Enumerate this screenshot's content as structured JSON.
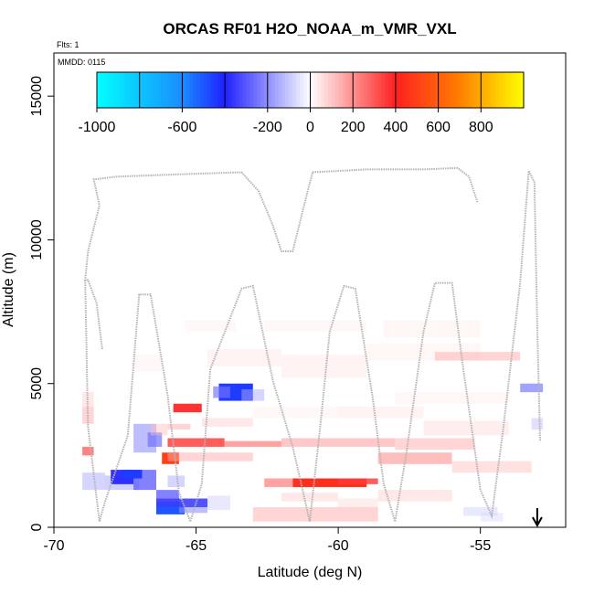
{
  "chart_data": {
    "type": "heatmap",
    "title": "ORCAS RF01 H2O_NOAA_m_VMR_VXL",
    "flights_note": "Flts: 1",
    "date_note": "MMDD: 0115",
    "xlabel": "Latitude (deg N)",
    "ylabel": "Altitude (m)",
    "xlim": [
      -70,
      -52
    ],
    "ylim": [
      0,
      16500
    ],
    "x_ticks": [
      -70,
      -65,
      -60,
      -55
    ],
    "x_tick_labels": [
      "-70",
      "-65",
      "-60",
      "-55"
    ],
    "y_ticks": [
      0,
      5000,
      10000,
      15000
    ],
    "y_tick_labels": [
      "0",
      "5000",
      "10000",
      "15000"
    ],
    "colorbar": {
      "range": [
        -1000,
        1000
      ],
      "ticks": [
        -1000,
        -600,
        -200,
        0,
        200,
        400,
        600,
        800
      ],
      "tick_labels": [
        "-1000",
        "-600",
        "-200",
        "0",
        "200",
        "400",
        "600",
        "800"
      ],
      "divisions": [
        -1000,
        -800,
        -600,
        -400,
        -200,
        0,
        200,
        400,
        600,
        800,
        1000
      ],
      "colors": [
        "#00ffff",
        "#1a8cff",
        "#2020ff",
        "#ffffff",
        "#ff2020",
        "#ff7f00",
        "#ffff00"
      ],
      "color_stops": [
        -1000,
        -600,
        -400,
        0,
        400,
        700,
        1000
      ]
    },
    "cells": [
      [
        -69.0,
        -68.6,
        4200,
        4700,
        100
      ],
      [
        -69.0,
        -68.6,
        3600,
        4200,
        150
      ],
      [
        -69.0,
        -68.6,
        2500,
        2800,
        300
      ],
      [
        -69.0,
        -68.2,
        1300,
        1900,
        -150
      ],
      [
        -68.2,
        -67.0,
        1300,
        1800,
        -160
      ],
      [
        -67.2,
        -66.4,
        1300,
        2000,
        -300
      ],
      [
        -68.0,
        -67.2,
        1500,
        2000,
        -400
      ],
      [
        -67.6,
        -66.9,
        1700,
        2000,
        -450
      ],
      [
        -67.2,
        -66.4,
        2600,
        3600,
        -200
      ],
      [
        -66.7,
        -66.2,
        2800,
        3300,
        -260
      ],
      [
        -66.4,
        -65.4,
        450,
        900,
        -500
      ],
      [
        -66.4,
        -65.6,
        900,
        1300,
        -300
      ],
      [
        -65.6,
        -64.6,
        500,
        1000,
        -200
      ],
      [
        -66.0,
        -65.4,
        1400,
        1800,
        -150
      ],
      [
        -64.6,
        -63.8,
        600,
        1100,
        -100
      ],
      [
        -66.6,
        -66.0,
        3200,
        3600,
        120
      ],
      [
        -66.0,
        -65.2,
        3400,
        3600,
        150
      ],
      [
        -65.8,
        -64.8,
        4000,
        4300,
        400
      ],
      [
        -66.2,
        -65.6,
        2200,
        2600,
        500
      ],
      [
        -66.0,
        -64.0,
        2800,
        3100,
        350
      ],
      [
        -64.0,
        -62.0,
        2800,
        3000,
        250
      ],
      [
        -66.0,
        -63.0,
        2300,
        2600,
        150
      ],
      [
        -64.8,
        -63.0,
        3500,
        3800,
        100
      ],
      [
        -64.2,
        -63.0,
        4400,
        5000,
        -450
      ],
      [
        -64.4,
        -63.8,
        4500,
        4900,
        -250
      ],
      [
        -63.4,
        -62.6,
        4400,
        4800,
        -150
      ],
      [
        -61.6,
        -59.0,
        1400,
        1700,
        450
      ],
      [
        -62.6,
        -61.6,
        1400,
        1700,
        250
      ],
      [
        -60.0,
        -58.6,
        1500,
        1700,
        350
      ],
      [
        -63.0,
        -58.6,
        200,
        700,
        150
      ],
      [
        -62.0,
        -60.0,
        900,
        1200,
        100
      ],
      [
        -60.0,
        -58.6,
        600,
        1000,
        80
      ],
      [
        -58.6,
        -56.0,
        900,
        1300,
        100
      ],
      [
        -62.0,
        -58.0,
        2800,
        3100,
        180
      ],
      [
        -58.6,
        -56.0,
        2200,
        2600,
        200
      ],
      [
        -58.0,
        -55.2,
        2700,
        3100,
        150
      ],
      [
        -56.0,
        -53.2,
        1900,
        2300,
        120
      ],
      [
        -57.0,
        -54.0,
        3200,
        3700,
        80
      ],
      [
        -55.6,
        -54.4,
        400,
        700,
        -100
      ],
      [
        -55.0,
        -54.2,
        200,
        500,
        -80
      ],
      [
        -53.6,
        -52.8,
        4700,
        5000,
        -250
      ],
      [
        -53.2,
        -52.8,
        3400,
        3800,
        -120
      ],
      [
        -64.6,
        -62.0,
        5600,
        6200,
        60
      ],
      [
        -62.0,
        -59.0,
        5200,
        6000,
        60
      ],
      [
        -59.0,
        -55.0,
        5800,
        6400,
        50
      ],
      [
        -56.6,
        -53.6,
        5800,
        6100,
        150
      ],
      [
        -58.4,
        -55.0,
        6600,
        7200,
        50
      ],
      [
        -62.6,
        -59.0,
        6800,
        7200,
        40
      ],
      [
        -67.2,
        -66.2,
        5400,
        6000,
        40
      ],
      [
        -65.4,
        -63.6,
        6800,
        7200,
        40
      ],
      [
        -60.0,
        -57.0,
        3800,
        4200,
        60
      ],
      [
        -58.0,
        -54.0,
        4300,
        4700,
        50
      ],
      [
        -63.0,
        -60.0,
        3800,
        4200,
        40
      ],
      [
        -66.4,
        -64.6,
        700,
        1000,
        -350
      ]
    ],
    "flight_track": [
      [
        -68.3,
        6200
      ],
      [
        -68.5,
        7800
      ],
      [
        -68.8,
        8600
      ],
      [
        -68.9,
        8600
      ],
      [
        -68.8,
        9600
      ],
      [
        -68.4,
        11200
      ],
      [
        -68.6,
        12100
      ],
      [
        -67.8,
        12200
      ],
      [
        -65.0,
        12300
      ],
      [
        -63.4,
        12350
      ],
      [
        -62.8,
        11700
      ],
      [
        -62.3,
        10500
      ],
      [
        -62.0,
        9600
      ],
      [
        -61.6,
        9600
      ],
      [
        -61.1,
        11600
      ],
      [
        -60.9,
        12350
      ],
      [
        -59.0,
        12450
      ],
      [
        -57.0,
        12450
      ],
      [
        -55.8,
        12500
      ],
      [
        -55.4,
        12200
      ],
      [
        -55.1,
        11300
      ]
    ],
    "flight_track_lower": [
      [
        -68.9,
        8600
      ],
      [
        -68.8,
        3500
      ],
      [
        -68.4,
        200
      ],
      [
        -68.2,
        900
      ],
      [
        -67.4,
        3200
      ],
      [
        -67.0,
        8100
      ],
      [
        -66.6,
        8100
      ],
      [
        -66.0,
        4600
      ],
      [
        -65.6,
        1200
      ],
      [
        -65.2,
        200
      ],
      [
        -64.8,
        1500
      ],
      [
        -64.5,
        5500
      ],
      [
        -63.4,
        8300
      ],
      [
        -63.0,
        8400
      ],
      [
        -62.3,
        5100
      ],
      [
        -61.6,
        2800
      ],
      [
        -61.0,
        200
      ],
      [
        -60.6,
        3800
      ],
      [
        -60.3,
        6800
      ],
      [
        -59.8,
        8400
      ],
      [
        -59.4,
        8300
      ],
      [
        -58.8,
        4600
      ],
      [
        -58.4,
        1500
      ],
      [
        -58.0,
        200
      ],
      [
        -57.6,
        2600
      ],
      [
        -57.0,
        6800
      ],
      [
        -56.6,
        8500
      ],
      [
        -56.0,
        8500
      ],
      [
        -55.6,
        5500
      ],
      [
        -55.0,
        1300
      ],
      [
        -54.6,
        400
      ],
      [
        -54.2,
        3400
      ],
      [
        -53.6,
        8500
      ],
      [
        -53.3,
        12400
      ],
      [
        -53.1,
        12000
      ],
      [
        -53.0,
        7000
      ],
      [
        -52.9,
        3000
      ]
    ],
    "arrow_marker": {
      "x": -53.0,
      "label": ""
    }
  }
}
